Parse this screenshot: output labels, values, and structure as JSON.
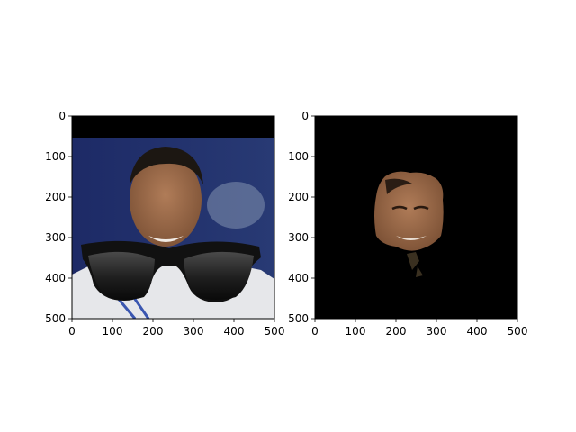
{
  "chart_data": [
    {
      "type": "image",
      "title": "",
      "xlabel": "",
      "ylabel": "",
      "xlim": [
        0,
        500
      ],
      "ylim": [
        500,
        0
      ],
      "xticks": [
        0,
        100,
        200,
        300,
        400,
        500
      ],
      "yticks": [
        0,
        100,
        200,
        300,
        400,
        500
      ],
      "xtick_labels": [
        "0",
        "100",
        "200",
        "300",
        "400",
        "500"
      ],
      "ytick_labels": [
        "0",
        "100",
        "200",
        "300",
        "400",
        "500"
      ],
      "content": "photo of smiling young man with black sunglasses overlay",
      "colors": {
        "top_band": "#000000",
        "background": "#1f2f6a",
        "skin": "#9c6b4c",
        "hair": "#1c1712",
        "shirt": "#e6e7ea",
        "lens": "#1a1a1a"
      }
    },
    {
      "type": "image",
      "title": "",
      "xlabel": "",
      "ylabel": "",
      "xlim": [
        0,
        500
      ],
      "ylim": [
        500,
        0
      ],
      "xticks": [
        0,
        100,
        200,
        300,
        400,
        500
      ],
      "yticks": [
        0,
        100,
        200,
        300,
        400,
        500
      ],
      "xtick_labels": [
        "0",
        "100",
        "200",
        "300",
        "400",
        "500"
      ],
      "ytick_labels": [
        "0",
        "100",
        "200",
        "300",
        "400",
        "500"
      ],
      "content": "masked face region on black background",
      "colors": {
        "background": "#000000",
        "skin": "#9c6b4c"
      }
    }
  ]
}
